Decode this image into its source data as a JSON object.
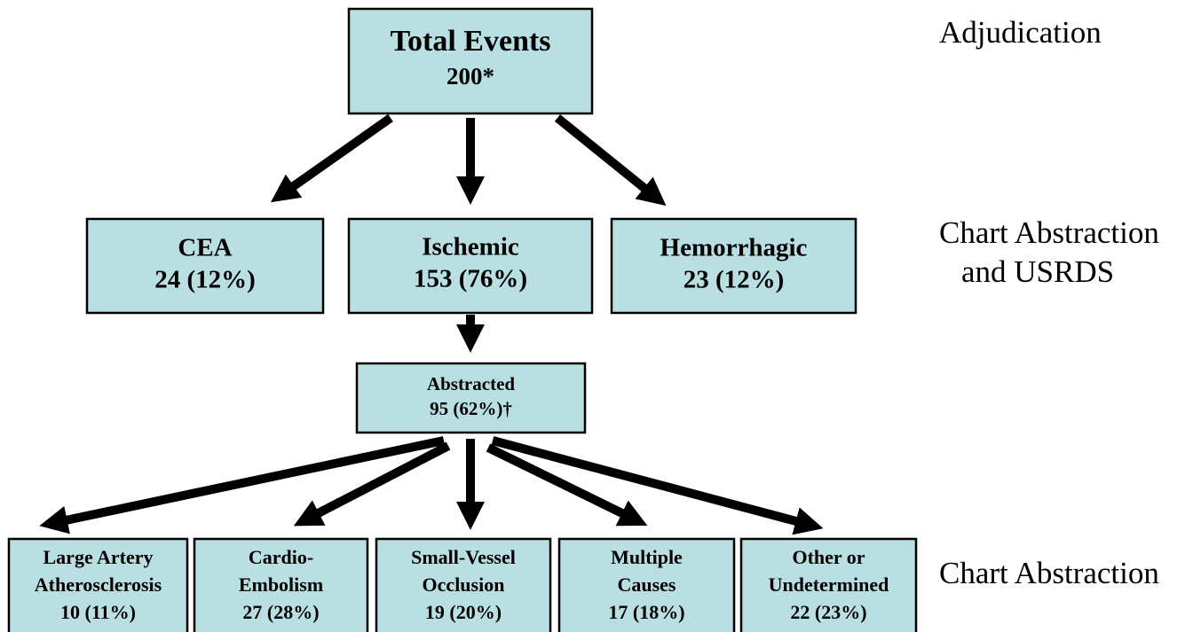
{
  "nodes": [
    {
      "lines": [
        "Total Events",
        "200*"
      ]
    },
    {
      "lines": [
        "CEA",
        "24 (12%)"
      ]
    },
    {
      "lines": [
        "Ischemic",
        "153 (76%)"
      ]
    },
    {
      "lines": [
        "Hemorrhagic",
        "23 (12%)"
      ]
    },
    {
      "lines": [
        "Abstracted",
        "95 (62%)†"
      ]
    },
    {
      "lines": [
        "Large Artery",
        "Atherosclerosis",
        "10 (11%)"
      ]
    },
    {
      "lines": [
        "Cardio-",
        "Embolism",
        "27 (28%)"
      ]
    },
    {
      "lines": [
        "Small-Vessel",
        "Occlusion",
        "19 (20%)"
      ]
    },
    {
      "lines": [
        "Multiple",
        "Causes",
        "17 (18%)"
      ]
    },
    {
      "lines": [
        "Other or",
        "Undetermined",
        "22 (23%)"
      ]
    }
  ],
  "levels": [
    {
      "lines": [
        "Adjudication"
      ]
    },
    {
      "lines": [
        "Chart Abstraction",
        "and USRDS"
      ]
    },
    {
      "lines": [
        "Chart Abstraction"
      ]
    }
  ]
}
